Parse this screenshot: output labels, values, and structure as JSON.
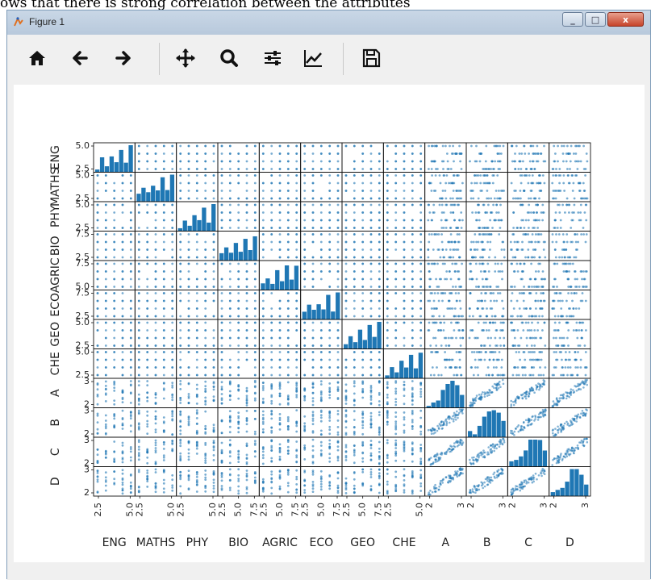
{
  "caption": "ows that there is strong correlation between the attributes",
  "window": {
    "title": "Figure 1",
    "close_glyph": "x",
    "min_glyph": "_",
    "max_glyph": "□"
  },
  "toolbar": [
    {
      "name": "home-button",
      "icon": "home-icon"
    },
    {
      "name": "back-button",
      "icon": "arrow-left-icon"
    },
    {
      "name": "forward-button",
      "icon": "arrow-right-icon"
    },
    {
      "name": "pan-button",
      "icon": "move-icon"
    },
    {
      "name": "zoom-button",
      "icon": "magnifier-icon"
    },
    {
      "name": "configure-subplots-button",
      "icon": "sliders-icon"
    },
    {
      "name": "edit-axis-button",
      "icon": "line-chart-icon"
    },
    {
      "name": "save-button",
      "icon": "floppy-disk-icon"
    }
  ],
  "chart_data": {
    "type": "scatter",
    "title": "",
    "variables": [
      "ENG",
      "MATHS",
      "PHY",
      "BIO",
      "AGRIC",
      "ECO",
      "GEO",
      "CHE",
      "A",
      "B",
      "C",
      "D"
    ],
    "y_tick_labels": [
      [
        "2.5",
        "5.0"
      ],
      [
        "2.5",
        "5.0"
      ],
      [
        "2.5",
        "5.0"
      ],
      [
        "2.5",
        "7.5"
      ],
      [
        "5.0",
        "7.5"
      ],
      [
        "2.5",
        "7.5"
      ],
      [
        "2.5",
        "5.0"
      ],
      [
        "2.5",
        "5.0"
      ],
      [
        "2",
        "3"
      ],
      [
        "2",
        "3"
      ],
      [
        "2",
        "3"
      ],
      [
        "2",
        "3"
      ]
    ],
    "x_tick_labels": [
      [
        "2.5",
        "5.0"
      ],
      [
        "2.5",
        "5.0"
      ],
      [
        "2.5",
        "5.0"
      ],
      [
        "2.5",
        "5.0",
        "7.5"
      ],
      [
        "2.5",
        "5.0",
        "7.5"
      ],
      [
        "2.5",
        "5.0",
        "7.5"
      ],
      [
        "2.5",
        "5.0",
        "7.5"
      ],
      [
        "2.5",
        "5.0"
      ],
      [
        "2",
        "3"
      ],
      [
        "2",
        "3"
      ],
      [
        "2",
        "3"
      ],
      [
        "2",
        "3"
      ]
    ],
    "diagonal": "histogram",
    "marker_color": "#1f77b4",
    "grid": false,
    "legend": "none",
    "note": "scatter matrix of 12 attributes; grade variables correlate strongly with each other"
  }
}
